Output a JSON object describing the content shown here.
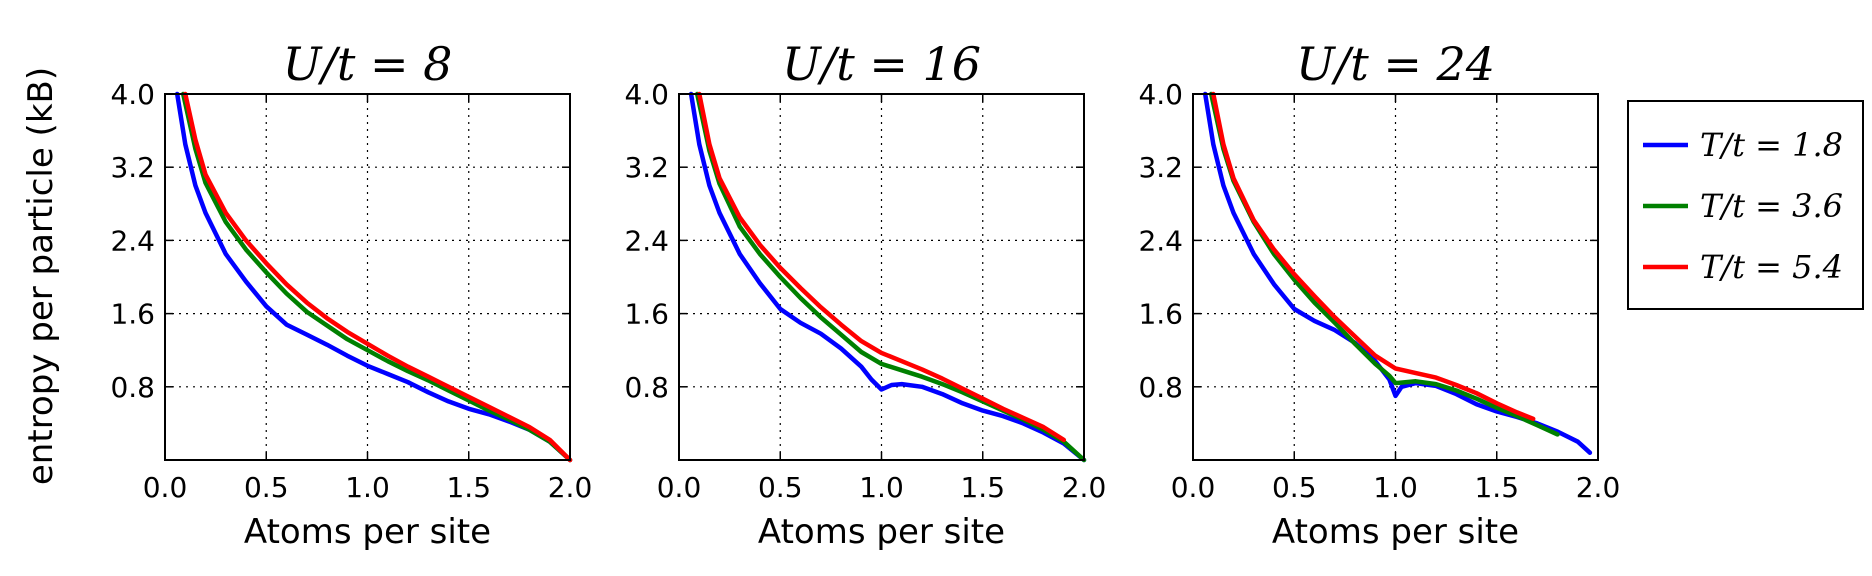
{
  "chart_data": {
    "type": "line",
    "ylabel": "entropy per particle (kB)",
    "legend": {
      "placement": "right",
      "entries": [
        {
          "label": "T/t = 1.8",
          "color": "#0000ff"
        },
        {
          "label": "T/t = 3.6",
          "color": "#008000"
        },
        {
          "label": "T/t = 5.4",
          "color": "#ff0000"
        }
      ]
    },
    "grid": true,
    "panels": [
      {
        "title": "U/t = 8",
        "xlabel": "Atoms per site",
        "xlim": [
          0.0,
          2.0
        ],
        "ylim": [
          0.0,
          4.0
        ],
        "xticks": [
          "0.0",
          "0.5",
          "1.0",
          "1.5",
          "2.0"
        ],
        "yticks": [
          "0.8",
          "1.6",
          "2.4",
          "3.2",
          "4.0"
        ],
        "series": [
          {
            "name": "T/t = 1.8",
            "color": "#0000ff",
            "points": [
              [
                0.06,
                4.0
              ],
              [
                0.1,
                3.45
              ],
              [
                0.15,
                3.0
              ],
              [
                0.2,
                2.7
              ],
              [
                0.3,
                2.25
              ],
              [
                0.4,
                1.95
              ],
              [
                0.5,
                1.68
              ],
              [
                0.6,
                1.48
              ],
              [
                0.7,
                1.37
              ],
              [
                0.8,
                1.26
              ],
              [
                0.9,
                1.14
              ],
              [
                1.0,
                1.03
              ],
              [
                1.1,
                0.94
              ],
              [
                1.2,
                0.85
              ],
              [
                1.3,
                0.74
              ],
              [
                1.4,
                0.64
              ],
              [
                1.5,
                0.56
              ],
              [
                1.6,
                0.5
              ],
              [
                1.7,
                0.42
              ],
              [
                1.8,
                0.33
              ],
              [
                1.9,
                0.2
              ],
              [
                2.0,
                0.0
              ]
            ]
          },
          {
            "name": "T/t = 3.6",
            "color": "#008000",
            "points": [
              [
                0.09,
                4.0
              ],
              [
                0.15,
                3.4
              ],
              [
                0.2,
                3.03
              ],
              [
                0.3,
                2.6
              ],
              [
                0.4,
                2.3
              ],
              [
                0.5,
                2.05
              ],
              [
                0.6,
                1.82
              ],
              [
                0.7,
                1.62
              ],
              [
                0.8,
                1.47
              ],
              [
                0.9,
                1.32
              ],
              [
                1.0,
                1.2
              ],
              [
                1.1,
                1.08
              ],
              [
                1.2,
                0.97
              ],
              [
                1.3,
                0.87
              ],
              [
                1.4,
                0.76
              ],
              [
                1.5,
                0.65
              ],
              [
                1.6,
                0.54
              ],
              [
                1.7,
                0.44
              ],
              [
                1.8,
                0.33
              ],
              [
                1.9,
                0.2
              ],
              [
                2.0,
                0.0
              ]
            ]
          },
          {
            "name": "T/t = 5.4",
            "color": "#ff0000",
            "points": [
              [
                0.1,
                4.0
              ],
              [
                0.15,
                3.5
              ],
              [
                0.2,
                3.12
              ],
              [
                0.3,
                2.7
              ],
              [
                0.4,
                2.4
              ],
              [
                0.5,
                2.15
              ],
              [
                0.6,
                1.92
              ],
              [
                0.7,
                1.72
              ],
              [
                0.8,
                1.55
              ],
              [
                0.9,
                1.4
              ],
              [
                1.0,
                1.27
              ],
              [
                1.1,
                1.14
              ],
              [
                1.2,
                1.02
              ],
              [
                1.3,
                0.91
              ],
              [
                1.4,
                0.8
              ],
              [
                1.5,
                0.69
              ],
              [
                1.6,
                0.58
              ],
              [
                1.7,
                0.47
              ],
              [
                1.8,
                0.36
              ],
              [
                1.9,
                0.22
              ],
              [
                2.0,
                0.0
              ]
            ]
          }
        ]
      },
      {
        "title": "U/t = 16",
        "xlabel": "Atoms per site",
        "xlim": [
          0.0,
          2.0
        ],
        "ylim": [
          0.0,
          4.0
        ],
        "xticks": [
          "0.0",
          "0.5",
          "1.0",
          "1.5",
          "2.0"
        ],
        "yticks": [
          "0.8",
          "1.6",
          "2.4",
          "3.2",
          "4.0"
        ],
        "series": [
          {
            "name": "T/t = 1.8",
            "color": "#0000ff",
            "points": [
              [
                0.06,
                4.0
              ],
              [
                0.1,
                3.45
              ],
              [
                0.15,
                3.0
              ],
              [
                0.2,
                2.7
              ],
              [
                0.3,
                2.25
              ],
              [
                0.4,
                1.93
              ],
              [
                0.5,
                1.65
              ],
              [
                0.6,
                1.5
              ],
              [
                0.7,
                1.38
              ],
              [
                0.8,
                1.22
              ],
              [
                0.9,
                1.02
              ],
              [
                0.95,
                0.88
              ],
              [
                1.0,
                0.77
              ],
              [
                1.05,
                0.82
              ],
              [
                1.1,
                0.83
              ],
              [
                1.2,
                0.8
              ],
              [
                1.3,
                0.72
              ],
              [
                1.4,
                0.62
              ],
              [
                1.5,
                0.54
              ],
              [
                1.6,
                0.48
              ],
              [
                1.7,
                0.4
              ],
              [
                1.8,
                0.3
              ],
              [
                1.9,
                0.18
              ],
              [
                2.0,
                0.0
              ]
            ]
          },
          {
            "name": "T/t = 3.6",
            "color": "#008000",
            "points": [
              [
                0.09,
                4.0
              ],
              [
                0.15,
                3.38
              ],
              [
                0.2,
                3.02
              ],
              [
                0.3,
                2.55
              ],
              [
                0.4,
                2.25
              ],
              [
                0.5,
                2.0
              ],
              [
                0.6,
                1.77
              ],
              [
                0.7,
                1.56
              ],
              [
                0.8,
                1.37
              ],
              [
                0.9,
                1.18
              ],
              [
                1.0,
                1.05
              ],
              [
                1.1,
                0.98
              ],
              [
                1.2,
                0.91
              ],
              [
                1.3,
                0.83
              ],
              [
                1.4,
                0.74
              ],
              [
                1.5,
                0.64
              ],
              [
                1.6,
                0.54
              ],
              [
                1.7,
                0.44
              ],
              [
                1.8,
                0.33
              ],
              [
                1.9,
                0.2
              ],
              [
                2.0,
                0.0
              ]
            ]
          },
          {
            "name": "T/t = 5.4",
            "color": "#ff0000",
            "points": [
              [
                0.1,
                4.0
              ],
              [
                0.15,
                3.45
              ],
              [
                0.2,
                3.08
              ],
              [
                0.3,
                2.65
              ],
              [
                0.4,
                2.35
              ],
              [
                0.5,
                2.1
              ],
              [
                0.6,
                1.88
              ],
              [
                0.7,
                1.67
              ],
              [
                0.8,
                1.48
              ],
              [
                0.9,
                1.3
              ],
              [
                1.0,
                1.17
              ],
              [
                1.1,
                1.08
              ],
              [
                1.2,
                0.99
              ],
              [
                1.3,
                0.89
              ],
              [
                1.4,
                0.78
              ],
              [
                1.5,
                0.67
              ],
              [
                1.6,
                0.56
              ],
              [
                1.7,
                0.46
              ],
              [
                1.8,
                0.36
              ],
              [
                1.9,
                0.22
              ]
            ]
          }
        ]
      },
      {
        "title": "U/t = 24",
        "xlabel": "Atoms per site",
        "xlim": [
          0.0,
          2.0
        ],
        "ylim": [
          0.0,
          4.0
        ],
        "xticks": [
          "0.0",
          "0.5",
          "1.0",
          "1.5",
          "2.0"
        ],
        "yticks": [
          "0.8",
          "1.6",
          "2.4",
          "3.2",
          "4.0"
        ],
        "series": [
          {
            "name": "T/t = 1.8",
            "color": "#0000ff",
            "points": [
              [
                0.06,
                4.0
              ],
              [
                0.1,
                3.45
              ],
              [
                0.15,
                3.0
              ],
              [
                0.2,
                2.7
              ],
              [
                0.3,
                2.25
              ],
              [
                0.4,
                1.92
              ],
              [
                0.5,
                1.65
              ],
              [
                0.6,
                1.52
              ],
              [
                0.7,
                1.42
              ],
              [
                0.8,
                1.28
              ],
              [
                0.9,
                1.08
              ],
              [
                0.97,
                0.88
              ],
              [
                1.0,
                0.7
              ],
              [
                1.03,
                0.8
              ],
              [
                1.1,
                0.84
              ],
              [
                1.2,
                0.81
              ],
              [
                1.3,
                0.72
              ],
              [
                1.4,
                0.61
              ],
              [
                1.5,
                0.53
              ],
              [
                1.6,
                0.47
              ],
              [
                1.7,
                0.4
              ],
              [
                1.8,
                0.31
              ],
              [
                1.9,
                0.2
              ],
              [
                1.96,
                0.08
              ]
            ]
          },
          {
            "name": "T/t = 3.6",
            "color": "#008000",
            "points": [
              [
                0.09,
                4.0
              ],
              [
                0.15,
                3.4
              ],
              [
                0.2,
                3.05
              ],
              [
                0.3,
                2.6
              ],
              [
                0.4,
                2.25
              ],
              [
                0.5,
                1.97
              ],
              [
                0.6,
                1.72
              ],
              [
                0.7,
                1.5
              ],
              [
                0.8,
                1.27
              ],
              [
                0.9,
                1.05
              ],
              [
                0.97,
                0.92
              ],
              [
                1.0,
                0.84
              ],
              [
                1.1,
                0.86
              ],
              [
                1.2,
                0.83
              ],
              [
                1.3,
                0.76
              ],
              [
                1.4,
                0.67
              ],
              [
                1.5,
                0.57
              ],
              [
                1.6,
                0.48
              ],
              [
                1.7,
                0.38
              ],
              [
                1.8,
                0.28
              ]
            ]
          },
          {
            "name": "T/t = 5.4",
            "color": "#ff0000",
            "points": [
              [
                0.1,
                4.0
              ],
              [
                0.15,
                3.45
              ],
              [
                0.2,
                3.08
              ],
              [
                0.3,
                2.62
              ],
              [
                0.4,
                2.3
              ],
              [
                0.5,
                2.03
              ],
              [
                0.6,
                1.79
              ],
              [
                0.7,
                1.56
              ],
              [
                0.8,
                1.35
              ],
              [
                0.9,
                1.14
              ],
              [
                1.0,
                1.0
              ],
              [
                1.1,
                0.95
              ],
              [
                1.2,
                0.9
              ],
              [
                1.3,
                0.82
              ],
              [
                1.4,
                0.73
              ],
              [
                1.5,
                0.62
              ],
              [
                1.6,
                0.52
              ],
              [
                1.68,
                0.45
              ]
            ]
          }
        ]
      }
    ]
  }
}
